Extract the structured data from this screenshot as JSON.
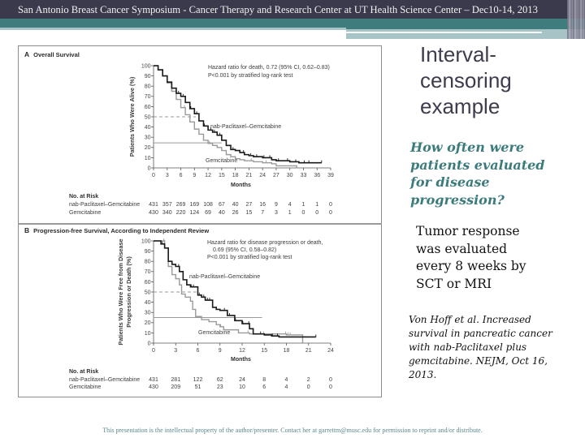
{
  "header": {
    "title": "San Antonio Breast Cancer Symposium - Cancer Therapy and Research Center at UT Health Science Center – Dec10-14, 2013"
  },
  "slide": {
    "title_lines": [
      "Interval-",
      "censoring",
      "example"
    ],
    "question_lines": [
      "How often were",
      "patients evaluated",
      "for disease",
      "progression?"
    ],
    "answer_lines": [
      "Tumor response",
      "was evaluated",
      "every 8 weeks by",
      "SCT or MRI"
    ],
    "citation_lines": [
      "Von Hoff et al. Increased",
      "survival in pancreatic cancer",
      "with nab-Paclitaxel plus",
      "gemcitabine. NEJM, Oct 16,",
      "2013."
    ]
  },
  "footer": {
    "text": "This presentation is the intellectual property of the author/presenter.  Contact her at garrettm@musc.edu for permission to reprint and/or distribute."
  },
  "colors": {
    "header_dark": "#3b3a4d",
    "header_teal": "#3f7c7d",
    "accent_teal": "#3b7b7c",
    "series_nab": "#1a1a1a",
    "series_gem": "#9a9a9a"
  },
  "chart_data": [
    {
      "type": "line",
      "subtype": "kaplan-meier",
      "panel_letter": "A",
      "title": "Overall Survival",
      "xlabel": "Months",
      "ylabel": "Patients Who Were Alive (%)",
      "xlim": [
        0,
        39
      ],
      "ylim": [
        0,
        100
      ],
      "xticks": [
        0,
        3,
        6,
        9,
        12,
        15,
        18,
        21,
        24,
        27,
        30,
        33,
        36,
        39
      ],
      "yticks": [
        0,
        10,
        20,
        30,
        40,
        50,
        60,
        70,
        80,
        90,
        100
      ],
      "grid": false,
      "annotations": {
        "hazard_line1": "Hazard ratio for death, 0.72 (95% CI, 0.62–0.83)",
        "hazard_line2": "P<0.001 by stratified log-rank test"
      },
      "series": [
        {
          "name": "nab-Paclitaxel–Gemcitabine",
          "color": "#1a1a1a",
          "x": [
            0,
            1,
            2,
            3,
            4,
            5,
            6,
            7,
            8,
            9,
            10,
            11,
            12,
            13,
            14,
            15,
            16,
            17,
            18,
            19,
            20,
            21,
            22,
            24,
            26,
            27,
            30,
            32,
            37
          ],
          "y": [
            100,
            96,
            90,
            84,
            78,
            73,
            70,
            64,
            58,
            53,
            46,
            41,
            37,
            35,
            32,
            27,
            22,
            18,
            17,
            15,
            13,
            12,
            11,
            10,
            8,
            7,
            6,
            5,
            5
          ],
          "censor_x": [
            5.5,
            6.5,
            8.2,
            9.5,
            11.2,
            12.6,
            13.4,
            14.6,
            17.5,
            19.8,
            21.4,
            22.7,
            24.3,
            25.6,
            27.5,
            29.5,
            31.3,
            33.2,
            34.2,
            37
          ]
        },
        {
          "name": "Gemcitabine",
          "color": "#9a9a9a",
          "x": [
            0,
            1,
            2,
            3,
            4,
            5,
            6,
            7,
            8,
            9,
            10,
            11,
            12,
            13,
            14,
            15,
            16,
            17,
            18,
            19,
            20,
            22,
            24,
            26,
            27,
            31.5
          ],
          "y": [
            100,
            96,
            90,
            83,
            75,
            67,
            59,
            52,
            45,
            38,
            33,
            27,
            24,
            22,
            20,
            17,
            13,
            11,
            9,
            8,
            7,
            6,
            5,
            4,
            2,
            0
          ],
          "censor_x": [
            6.8,
            12.3,
            21.5,
            24.8
          ]
        }
      ],
      "reference_lines": [
        {
          "y": 50,
          "x_end": 9.3,
          "style": "dashed"
        },
        {
          "y": 24.5,
          "x_end": 15,
          "style": "solid"
        }
      ],
      "number_at_risk": {
        "header": "No. at Risk",
        "rows": [
          {
            "label": "nab-Paclitaxel–Gemcitabine",
            "values": [
              431,
              357,
              269,
              169,
              108,
              67,
              40,
              27,
              16,
              9,
              4,
              1,
              1,
              0
            ]
          },
          {
            "label": "Gemcitabine",
            "values": [
              430,
              340,
              220,
              124,
              69,
              40,
              26,
              15,
              7,
              3,
              1,
              0,
              0,
              0
            ]
          }
        ]
      }
    },
    {
      "type": "line",
      "subtype": "kaplan-meier",
      "panel_letter": "B",
      "title": "Progression-free Survival, According to Independent Review",
      "xlabel": "Months",
      "ylabel_lines": [
        "Patients Who Were Free from Disease",
        "Progression or Death (%)"
      ],
      "xlim": [
        0,
        24
      ],
      "ylim": [
        0,
        100
      ],
      "xticks": [
        0,
        3,
        6,
        9,
        12,
        15,
        18,
        21,
        24
      ],
      "yticks": [
        0,
        10,
        20,
        30,
        40,
        50,
        60,
        70,
        80,
        90,
        100
      ],
      "grid": false,
      "annotations": {
        "hazard_line1": "Hazard ratio for disease progression or death,",
        "hazard_line2": "0.69 (95% CI, 0.58–0.82)",
        "hazard_line3": "P<0.001 by stratified log-rank test"
      },
      "series": [
        {
          "name": "nab-Paclitaxel–Gemcitabine",
          "color": "#1a1a1a",
          "x": [
            0,
            1,
            1.5,
            2,
            2.5,
            3,
            3.5,
            4,
            4.5,
            5,
            6,
            6.5,
            7,
            8,
            8.5,
            9,
            10,
            11,
            12,
            13,
            13.5,
            15,
            16,
            17,
            22
          ],
          "y": [
            100,
            97,
            93,
            80,
            77,
            75,
            70,
            62,
            57,
            55,
            47,
            45,
            42,
            35,
            33,
            32,
            27,
            22,
            19,
            14,
            9,
            8,
            7,
            6,
            6
          ],
          "censor_x": [
            1.2,
            3.4,
            5.1,
            5.4,
            6.2,
            6.8,
            7.3,
            7.6,
            9.6,
            10.3,
            11.1,
            12.1,
            12.9,
            14.5,
            16.1,
            16.8,
            22
          ]
        },
        {
          "name": "Gemcitabine",
          "color": "#9a9a9a",
          "x": [
            0,
            1.5,
            2,
            2.5,
            3,
            3.5,
            3.8,
            4.3,
            5,
            5.3,
            5.7,
            6.5,
            7.5,
            8.5,
            9,
            9.5,
            11.5,
            13,
            18,
            20.2
          ],
          "y": [
            100,
            93,
            75,
            67,
            63,
            57,
            48,
            45,
            41,
            33,
            26,
            23,
            21,
            18,
            16,
            13,
            10,
            9,
            8,
            0
          ],
          "censor_x": [
            1.4,
            9.1,
            12.8,
            14.9,
            17.9,
            18.2,
            18.5
          ]
        }
      ],
      "reference_lines": [
        {
          "y": 50,
          "x_end": 5.8,
          "style": "dashed"
        },
        {
          "y": 25,
          "x_end": 14.7,
          "style": "solid"
        }
      ],
      "number_at_risk": {
        "header": "No. at Risk",
        "rows": [
          {
            "label": "nab-Paclitaxel–Gemcitabine",
            "values": [
              431,
              281,
              122,
              62,
              24,
              8,
              4,
              2,
              0
            ]
          },
          {
            "label": "Gemcitabine",
            "values": [
              430,
              209,
              51,
              23,
              10,
              6,
              4,
              0,
              0
            ]
          }
        ]
      }
    }
  ]
}
